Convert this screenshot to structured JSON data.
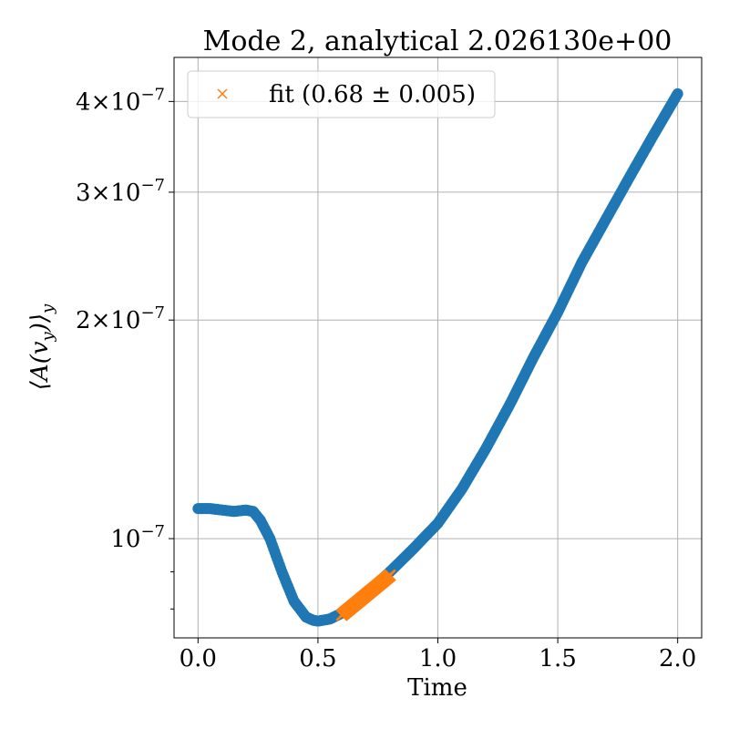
{
  "chart_data": {
    "type": "scatter",
    "title": "Mode 2, analytical 2.026130e+00",
    "xlabel": "Time",
    "ylabel": "⟨A(v_y)⟩_y",
    "yscale": "log",
    "xlim": [
      -0.1,
      2.1
    ],
    "ylim": [
      7.3e-08,
      4.6e-07
    ],
    "grid": true,
    "legend_position": "top-left",
    "x_ticks": [
      {
        "value": 0.0,
        "label": "0.0"
      },
      {
        "value": 0.5,
        "label": "0.5"
      },
      {
        "value": 1.0,
        "label": "1.0"
      },
      {
        "value": 1.5,
        "label": "1.5"
      },
      {
        "value": 2.0,
        "label": "2.0"
      }
    ],
    "y_ticks": [
      {
        "value": 1e-07,
        "mantissa": "",
        "exponent": "−7"
      },
      {
        "value": 2e-07,
        "mantissa": "2",
        "exponent": "−7"
      },
      {
        "value": 3e-07,
        "mantissa": "3",
        "exponent": "−7"
      },
      {
        "value": 4e-07,
        "mantissa": "4",
        "exponent": "−7"
      }
    ],
    "y_minor_ticks": [
      8e-08,
      9e-08
    ],
    "series": [
      {
        "kind": "data",
        "marker": "circle",
        "color": "#1f77b4",
        "x": [
          0.0,
          0.05,
          0.1,
          0.15,
          0.2,
          0.23,
          0.26,
          0.3,
          0.35,
          0.4,
          0.45,
          0.48,
          0.5,
          0.55,
          0.6,
          0.7,
          0.8,
          0.9,
          1.0,
          1.1,
          1.2,
          1.3,
          1.4,
          1.5,
          1.6,
          1.7,
          1.8,
          1.9,
          2.0
        ],
        "y": [
          1.1e-07,
          1.1e-07,
          1.095e-07,
          1.09e-07,
          1.095e-07,
          1.09e-07,
          1.06e-07,
          1e-07,
          9e-08,
          8.2e-08,
          7.8e-08,
          7.72e-08,
          7.7e-08,
          7.75e-08,
          7.9e-08,
          8.4e-08,
          9e-08,
          9.7e-08,
          1.05e-07,
          1.17e-07,
          1.33e-07,
          1.53e-07,
          1.78e-07,
          2.05e-07,
          2.4e-07,
          2.75e-07,
          3.15e-07,
          3.6e-07,
          4.1e-07
        ]
      },
      {
        "kind": "fit",
        "name": "fit (0.68 ± 0.005)",
        "marker": "x",
        "color": "#ff7f0e",
        "x": [
          0.6,
          0.8
        ],
        "y": [
          7.85e-08,
          8.9e-08
        ]
      }
    ]
  }
}
